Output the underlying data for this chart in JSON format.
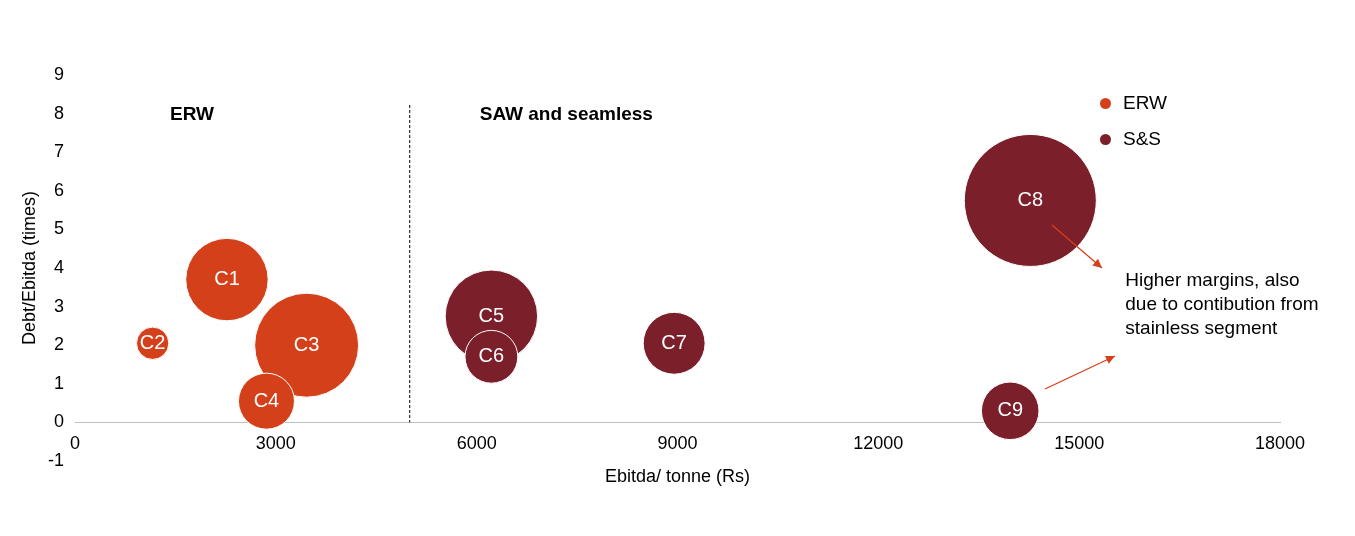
{
  "chart_data": {
    "type": "bubble",
    "xlabel": "Ebitda/ tonne (Rs)",
    "ylabel": "Debt/Ebitda (times)",
    "xlim": [
      0,
      18000
    ],
    "xticks": [
      0,
      3000,
      6000,
      9000,
      12000,
      15000,
      18000
    ],
    "ylim": [
      -1,
      9
    ],
    "yticks": [
      -1,
      0,
      1,
      2,
      3,
      4,
      5,
      6,
      7,
      8,
      9
    ],
    "grid": false,
    "legend": "top right",
    "series": [
      {
        "name": "ERW",
        "color": "#d4401a",
        "x": [
          2270,
          1160,
          3460,
          2860
        ],
        "values": [
          3.7,
          2.05,
          2.0,
          0.55
        ],
        "sizes": [
          0.39,
          0.06,
          0.62,
          0.18
        ],
        "value_labels": [
          "C1",
          "C2",
          "C3",
          "C4"
        ]
      },
      {
        "name": "S&S",
        "color": "#7b1f2b",
        "x": [
          6220,
          6220,
          8950,
          14270,
          13970
        ],
        "values": [
          2.75,
          1.7,
          2.05,
          5.75,
          0.3
        ],
        "sizes": [
          0.49,
          0.16,
          0.22,
          1,
          0.19
        ],
        "value_labels": [
          "C5",
          "C6",
          "C7",
          "C8",
          "C9"
        ]
      }
    ],
    "ref_lines": [
      {
        "axis": "x",
        "value": 5000,
        "line_style": "dashed",
        "color": "#000000"
      }
    ],
    "annotations": [
      "ERW",
      "SAW and seamless",
      "Higher margins, also due to contibution from stainless segment"
    ]
  }
}
